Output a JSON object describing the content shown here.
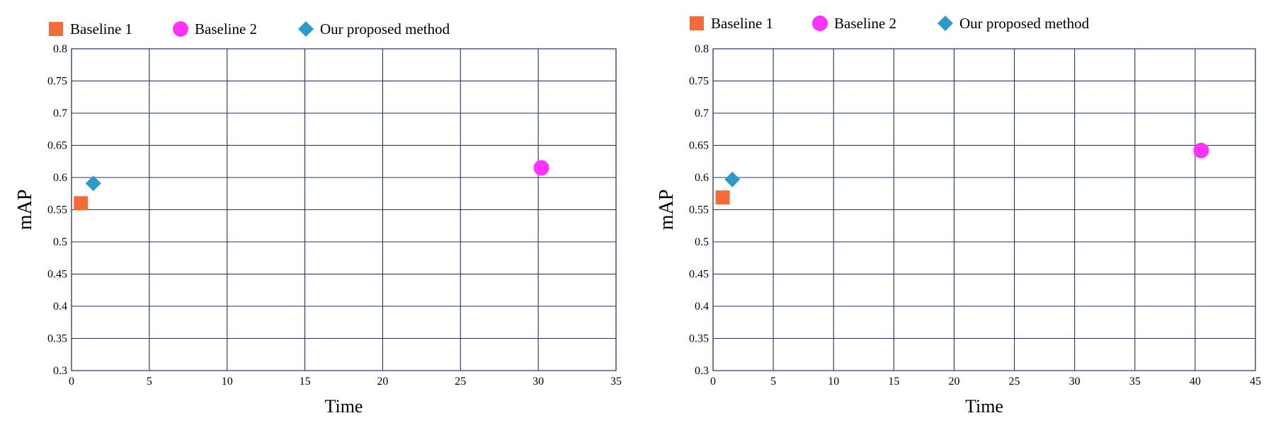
{
  "chart_data": [
    {
      "type": "scatter",
      "xlabel": "Time",
      "ylabel": "mAP",
      "xlim": [
        0,
        35
      ],
      "ylim": [
        0.3,
        0.8
      ],
      "xticks": [
        "0",
        "5",
        "10",
        "15",
        "20",
        "25",
        "30",
        "35"
      ],
      "yticks": [
        "0.3",
        "0.35",
        "0.4",
        "0.45",
        "0.5",
        "0.55",
        "0.6",
        "0.65",
        "0.7",
        "0.75",
        "0.8"
      ],
      "grid": true,
      "legend_position": "top",
      "series": [
        {
          "name": "Baseline 1",
          "marker": "square",
          "color": "#F26B3A",
          "points": [
            {
              "x": 0.6,
              "y": 0.56
            }
          ]
        },
        {
          "name": "Baseline 2",
          "marker": "circle",
          "color": "#FF33FF",
          "points": [
            {
              "x": 30.2,
              "y": 0.615
            }
          ]
        },
        {
          "name": "Our proposed method",
          "marker": "diamond",
          "color": "#2E9AC8",
          "points": [
            {
              "x": 1.4,
              "y": 0.591
            }
          ]
        }
      ]
    },
    {
      "type": "scatter",
      "xlabel": "Time",
      "ylabel": "mAP",
      "xlim": [
        0,
        45
      ],
      "ylim": [
        0.3,
        0.8
      ],
      "xticks": [
        "0",
        "5",
        "10",
        "15",
        "20",
        "25",
        "30",
        "35",
        "40",
        "45"
      ],
      "yticks": [
        "0.3",
        "0.35",
        "0.4",
        "0.45",
        "0.5",
        "0.55",
        "0.6",
        "0.65",
        "0.7",
        "0.75",
        "0.8"
      ],
      "grid": true,
      "legend_position": "top",
      "series": [
        {
          "name": "Baseline 1",
          "marker": "square",
          "color": "#F26B3A",
          "points": [
            {
              "x": 0.8,
              "y": 0.569
            }
          ]
        },
        {
          "name": "Baseline 2",
          "marker": "circle",
          "color": "#FF33FF",
          "points": [
            {
              "x": 40.5,
              "y": 0.642
            }
          ]
        },
        {
          "name": "Our proposed method",
          "marker": "diamond",
          "color": "#2E9AC8",
          "points": [
            {
              "x": 1.6,
              "y": 0.597
            }
          ]
        }
      ]
    }
  ]
}
